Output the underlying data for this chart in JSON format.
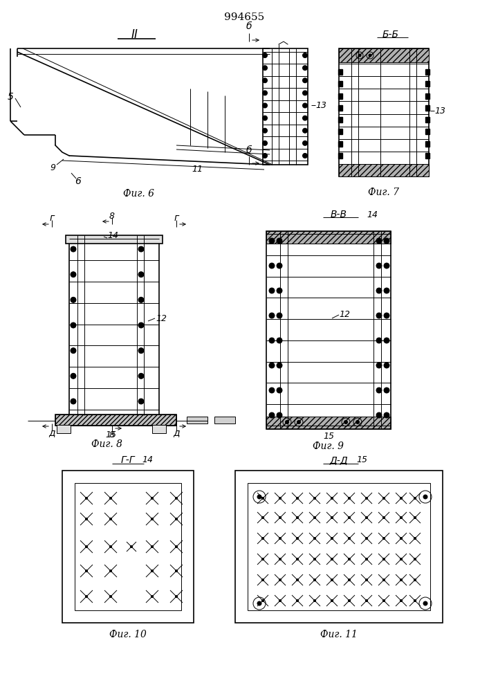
{
  "title": "994655",
  "bg_color": "#ffffff",
  "line_color": "#000000",
  "fig6_label": "Фиг. 6",
  "fig7_label": "Фиг. 7",
  "fig8_label": "Фиг. 8",
  "fig9_label": "Фиг. 9",
  "fig10_label": "Фиг. 10",
  "fig11_label": "Фиг. 11"
}
